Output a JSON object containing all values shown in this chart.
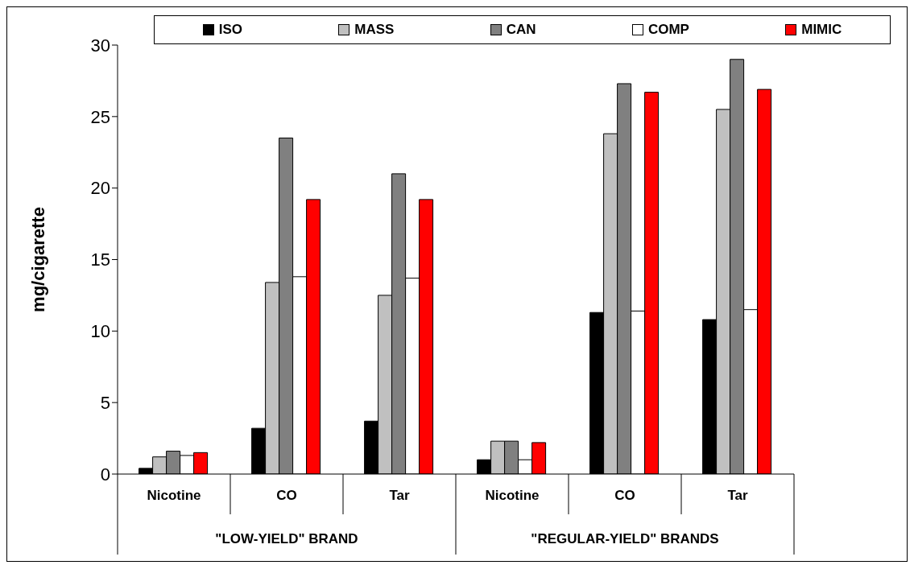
{
  "chart_data": {
    "type": "bar",
    "ylabel": "mg/cigarette",
    "categories": [
      "Nicotine",
      "CO",
      "Tar",
      "Nicotine",
      "CO",
      "Tar"
    ],
    "series": [
      {
        "name": "ISO",
        "color": "#000000",
        "values": [
          0.4,
          3.2,
          3.7,
          1.0,
          11.3,
          10.8
        ]
      },
      {
        "name": "MASS",
        "color": "#c0c0c0",
        "values": [
          1.2,
          13.4,
          12.5,
          2.3,
          23.8,
          25.5
        ]
      },
      {
        "name": "CAN",
        "color": "#808080",
        "values": [
          1.6,
          23.5,
          21.0,
          2.3,
          27.3,
          29.0
        ]
      },
      {
        "name": "COMP",
        "color": "#ffffff",
        "values": [
          1.3,
          13.8,
          13.7,
          1.0,
          11.4,
          11.5
        ]
      },
      {
        "name": "MIMIC",
        "color": "#ff0000",
        "values": [
          1.5,
          19.2,
          19.2,
          2.2,
          26.7,
          26.9
        ]
      }
    ],
    "annotations": [
      "\"LOW-YIELD\" BRAND",
      "\"REGULAR-YIELD\" BRANDS"
    ],
    "ylim": [
      0,
      30
    ],
    "yticks": [
      0,
      5,
      10,
      15,
      20,
      25,
      30
    ],
    "grid": false,
    "legend": "top"
  }
}
